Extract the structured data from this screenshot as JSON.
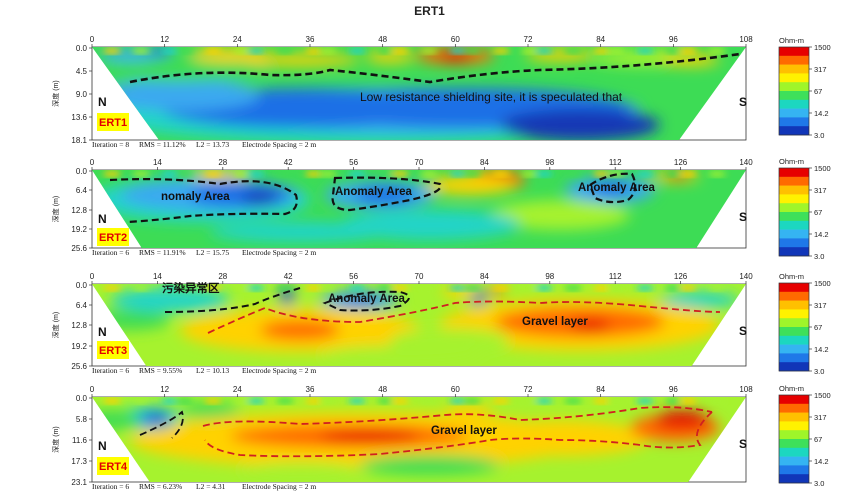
{
  "figure_title": "ERT1",
  "colorbar": {
    "unit": "Ohm-m",
    "ticks": [
      "1500",
      "317",
      "67",
      "14.2",
      "3.0"
    ],
    "colors": [
      "#e60000",
      "#ff6a00",
      "#ffc000",
      "#fff200",
      "#9ff52a",
      "#3ee05a",
      "#1cd7c0",
      "#35b4f2",
      "#1f78e8",
      "#1136b8"
    ]
  },
  "chart_data": [
    {
      "type": "heatmap",
      "name": "ERT1",
      "profile_label": "ERT1",
      "ylabel": "深度 (m)",
      "x_ticks": [
        0,
        12,
        24,
        36,
        48,
        60,
        72,
        84,
        96,
        108
      ],
      "x_range": [
        0,
        108
      ],
      "y_ticks": [
        "0.0",
        "4.5",
        "9.0",
        "13.6",
        "18.1"
      ],
      "y_range": [
        0,
        18.1
      ],
      "footer": {
        "iteration": "Iteration = 8",
        "rms": "RMS = 11.12%",
        "l2": "L2 = 13.73",
        "spacing": "Electrode Spacing = 2 m"
      },
      "left_marker": "N",
      "right_marker": "S",
      "annotations": [
        "Low resistance shielding site, it is speculated that"
      ]
    },
    {
      "type": "heatmap",
      "name": "ERT2",
      "profile_label": "ERT2",
      "ylabel": "深度 (m)",
      "x_ticks": [
        0,
        14,
        28,
        42,
        56,
        70,
        84,
        98,
        112,
        126,
        140
      ],
      "x_range": [
        0,
        140
      ],
      "y_ticks": [
        "0.0",
        "6.4",
        "12.8",
        "19.2",
        "25.6"
      ],
      "y_range": [
        0,
        25.6
      ],
      "footer": {
        "iteration": "Iteration = 6",
        "rms": "RMS = 11.91%",
        "l2": "L2 = 15.75",
        "spacing": "Electrode Spacing = 2 m"
      },
      "left_marker": "N",
      "right_marker": "S",
      "annotations": [
        "nomaly Area",
        "Anomaly Area",
        "Anomaly Area"
      ]
    },
    {
      "type": "heatmap",
      "name": "ERT3",
      "profile_label": "ERT3",
      "ylabel": "深度 (m)",
      "x_ticks": [
        0,
        14,
        28,
        42,
        56,
        70,
        84,
        98,
        112,
        126,
        140
      ],
      "x_range": [
        0,
        140
      ],
      "y_ticks": [
        "0.0",
        "6.4",
        "12.8",
        "19.2",
        "25.6"
      ],
      "y_range": [
        0,
        25.6
      ],
      "footer": {
        "iteration": "Iteration = 6",
        "rms": "RMS = 9.55%",
        "l2": "L2 = 10.13",
        "spacing": "Electrode Spacing = 2 m"
      },
      "left_marker": "N",
      "right_marker": "S",
      "annotations": [
        "污染异常区",
        "Anomaly Area",
        "Gravel layer"
      ]
    },
    {
      "type": "heatmap",
      "name": "ERT4",
      "profile_label": "ERT4",
      "ylabel": "深度 (m)",
      "x_ticks": [
        0,
        12,
        24,
        36,
        48,
        60,
        72,
        84,
        96,
        108
      ],
      "x_range": [
        0,
        108
      ],
      "y_ticks": [
        "0.0",
        "5.8",
        "11.6",
        "17.3",
        "23.1"
      ],
      "y_range": [
        0,
        23.1
      ],
      "footer": {
        "iteration": "Iteration = 6",
        "rms": "RMS = 6.23%",
        "l2": "L2 = 4.31",
        "spacing": "Electrode Spacing = 2 m"
      },
      "left_marker": "N",
      "right_marker": "S",
      "annotations": [
        "Gravel layer"
      ]
    }
  ]
}
